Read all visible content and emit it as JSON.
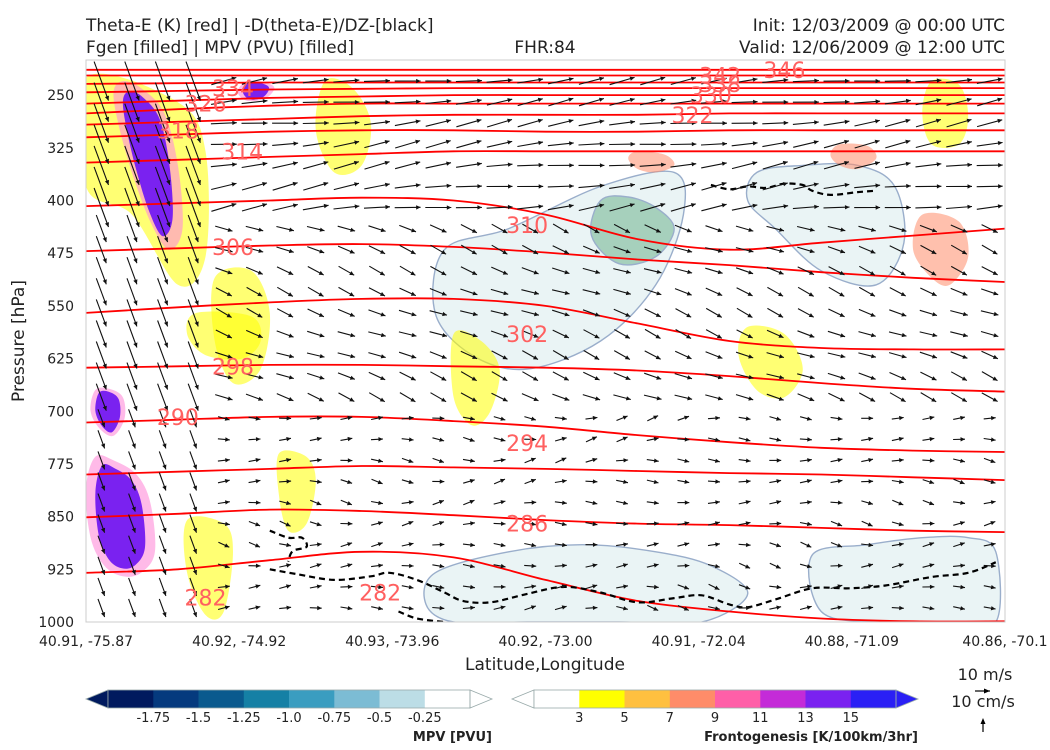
{
  "header": {
    "line1_left": "Theta-E (K) [red] | -D(theta-E)/DZ-[black]",
    "line2_left": "Fgen [filled] | MPV (PVU) [filled]",
    "line2_center": "FHR:84",
    "line1_right": "Init: 12/03/2009 @ 00:00 UTC",
    "line2_right": "Valid: 12/06/2009 @ 12:00 UTC"
  },
  "colors": {
    "theta_e": "#ff0000",
    "theta_e_label": "#ff6060",
    "stability": "#000000",
    "mpv_outline": "#9aaecb",
    "mpv_scale": [
      "#001a5e",
      "#053a7e",
      "#0a5a8e",
      "#1580a5",
      "#3a9dc0",
      "#7cbcd4",
      "#bcdde6",
      "#ffffff"
    ],
    "fgen_scale": [
      "#ffffff",
      "#ffff00",
      "#ffc040",
      "#ff8c69",
      "#ff5fa8",
      "#c42bd8",
      "#7a22f0",
      "#2a20f5"
    ]
  },
  "chart_data": {
    "type": "cross-section",
    "xlabel": "Latitude,Longitude",
    "ylabel": "Pressure [hPa]",
    "x_tick_labels": [
      "40.91, -75.87",
      "40.92, -74.92",
      "40.93, -73.96",
      "40.92, -73.00",
      "40.91, -72.04",
      "40.88, -71.09",
      "40.86, -70.1"
    ],
    "y_tick_labels": [
      "250",
      "325",
      "400",
      "475",
      "550",
      "625",
      "700",
      "775",
      "850",
      "925",
      "1000"
    ],
    "ylim": [
      1000,
      200
    ],
    "theta_e": [
      {
        "label": "346",
        "y": [
          214,
          214,
          214,
          214,
          214,
          214,
          214,
          214,
          214,
          214,
          214
        ]
      },
      {
        "label": "342",
        "y": [
          222,
          222,
          222,
          222,
          222,
          222,
          222,
          222,
          222,
          222,
          222
        ]
      },
      {
        "label": "338",
        "y": [
          234,
          233,
          232,
          232,
          232,
          232,
          232,
          232,
          232,
          232,
          232
        ]
      },
      {
        "label": "334",
        "y": [
          246,
          244,
          242,
          241,
          240,
          240,
          240,
          240,
          240,
          240,
          240
        ]
      },
      {
        "label": "330",
        "y": [
          262,
          258,
          254,
          252,
          250,
          250,
          250,
          250,
          250,
          250,
          250
        ]
      },
      {
        "label": "326",
        "y": [
          276,
          270,
          265,
          262,
          262,
          262,
          262,
          262,
          262,
          262,
          262
        ]
      },
      {
        "label": "322",
        "y": [
          292,
          288,
          284,
          280,
          278,
          278,
          278,
          276,
          276,
          276,
          276
        ]
      },
      {
        "label": "318",
        "y": [
          310,
          306,
          302,
          300,
          300,
          302,
          302,
          300,
          300,
          300,
          300
        ]
      },
      {
        "label": "314",
        "y": [
          346,
          342,
          338,
          334,
          330,
          330,
          330,
          330,
          330,
          330,
          330
        ]
      },
      {
        "label": "310",
        "y": [
          408,
          404,
          400,
          396,
          400,
          420,
          455,
          470,
          460,
          450,
          440
        ]
      },
      {
        "label": "306",
        "y": [
          472,
          468,
          464,
          462,
          466,
          474,
          484,
          492,
          502,
          510,
          516
        ]
      },
      {
        "label": "302",
        "y": [
          560,
          552,
          545,
          540,
          540,
          550,
          575,
          600,
          610,
          612,
          612
        ]
      },
      {
        "label": "298",
        "y": [
          638,
          636,
          634,
          634,
          636,
          638,
          642,
          650,
          660,
          668,
          672
        ]
      },
      {
        "label": "294",
        "y": [
          716,
          712,
          708,
          708,
          714,
          722,
          734,
          744,
          752,
          756,
          758
        ]
      },
      {
        "label": "290",
        "y": [
          790,
          786,
          782,
          778,
          780,
          782,
          785,
          788,
          790,
          794,
          798
        ]
      },
      {
        "label": "286",
        "y": [
          851,
          846,
          840,
          842,
          848,
          855,
          860,
          862,
          866,
          870,
          872
        ]
      },
      {
        "label": "282",
        "y": [
          930,
          925,
          912,
          900,
          908,
          940,
          970,
          985,
          995,
          999,
          999
        ]
      }
    ],
    "theta_e_label_positions": [
      {
        "label": "346",
        "x": 7.6,
        "p": 214
      },
      {
        "label": "342",
        "x": 6.9,
        "p": 222
      },
      {
        "label": "338",
        "x": 6.9,
        "p": 234
      },
      {
        "label": "334",
        "x": 1.6,
        "p": 240
      },
      {
        "label": "330",
        "x": 6.8,
        "p": 250
      },
      {
        "label": "326",
        "x": 1.3,
        "p": 262
      },
      {
        "label": "322",
        "x": 6.6,
        "p": 278
      },
      {
        "label": "318",
        "x": 1.0,
        "p": 300
      },
      {
        "label": "314",
        "x": 1.7,
        "p": 330
      },
      {
        "label": "310",
        "x": 4.8,
        "p": 435
      },
      {
        "label": "306",
        "x": 1.6,
        "p": 466
      },
      {
        "label": "302",
        "x": 4.8,
        "p": 590
      },
      {
        "label": "298",
        "x": 1.6,
        "p": 636
      },
      {
        "label": "294",
        "x": 4.8,
        "p": 745
      },
      {
        "label": "290",
        "x": 1.0,
        "p": 708
      },
      {
        "label": "286",
        "x": 4.8,
        "p": 860
      },
      {
        "label": "282",
        "x": 1.3,
        "p": 965
      },
      {
        "label": "282",
        "x": 3.2,
        "p": 958
      }
    ],
    "stability_contour": {
      "label": "-D(theta-E)/DZ",
      "segments": [
        [
          [
            2.0,
            925
          ],
          [
            2.3,
            932
          ],
          [
            2.7,
            940
          ],
          [
            3.1,
            935
          ],
          [
            3.3,
            930
          ],
          [
            3.6,
            940
          ],
          [
            3.9,
            958
          ],
          [
            4.1,
            970
          ],
          [
            4.4,
            972
          ],
          [
            4.8,
            960
          ],
          [
            5.2,
            950
          ],
          [
            5.6,
            958
          ],
          [
            6.0,
            972
          ],
          [
            6.4,
            966
          ],
          [
            6.7,
            962
          ],
          [
            7.0,
            975
          ],
          [
            7.2,
            979
          ],
          [
            7.5,
            968
          ],
          [
            7.9,
            952
          ],
          [
            8.3,
            952
          ],
          [
            8.7,
            948
          ],
          [
            9.2,
            936
          ],
          [
            9.6,
            930
          ],
          [
            9.9,
            915
          ]
        ],
        [
          [
            2.0,
            870
          ],
          [
            2.2,
            880
          ],
          [
            2.35,
            880
          ],
          [
            2.4,
            893
          ],
          [
            2.25,
            899
          ],
          [
            2.2,
            914
          ]
        ],
        [
          [
            6.8,
            378
          ],
          [
            7.0,
            384
          ],
          [
            7.2,
            380
          ],
          [
            7.4,
            382
          ],
          [
            7.6,
            376
          ],
          [
            7.8,
            378
          ],
          [
            7.9,
            386
          ],
          [
            8.1,
            392
          ],
          [
            8.4,
            388
          ],
          [
            8.6,
            386
          ]
        ],
        [
          [
            3.4,
            985
          ],
          [
            3.6,
            995
          ],
          [
            3.9,
            1000
          ]
        ]
      ]
    },
    "mpv_positive_regions": [
      {
        "x": [
          0.4,
          0.6,
          0.85,
          1.0,
          1.05,
          0.9,
          0.7,
          0.5,
          0.35,
          0.3
        ],
        "p": [
          230,
          240,
          275,
          350,
          440,
          470,
          430,
          360,
          290,
          245
        ],
        "level": 13
      },
      {
        "x": [
          0.1,
          0.3,
          0.55,
          0.7,
          0.75,
          0.6,
          0.4,
          0.2,
          0.05,
          0.0
        ],
        "p": [
          765,
          770,
          790,
          830,
          900,
          930,
          935,
          920,
          880,
          810
        ],
        "level": 13
      },
      {
        "x": [
          0.1,
          0.25,
          0.4,
          0.42,
          0.3,
          0.15,
          0.05
        ],
        "p": [
          670,
          668,
          680,
          710,
          735,
          725,
          700
        ],
        "level": 13
      },
      {
        "x": [
          1.75,
          1.95,
          2.05,
          1.95,
          1.75,
          1.65
        ],
        "p": [
          230,
          232,
          240,
          255,
          258,
          245
        ],
        "level": 13
      }
    ],
    "fgen_regions": [
      {
        "x": [
          0.0,
          1.0,
          1.3,
          1.3,
          1.0,
          0.5,
          0.0
        ],
        "p": [
          225,
          260,
          330,
          480,
          520,
          420,
          380
        ],
        "level": 3
      },
      {
        "x": [
          1.4,
          1.8,
          2.0,
          1.9,
          1.6,
          1.4
        ],
        "p": [
          510,
          500,
          560,
          640,
          660,
          600
        ],
        "level": 3
      },
      {
        "x": [
          2.6,
          2.9,
          3.1,
          3.0,
          2.7,
          2.5
        ],
        "p": [
          230,
          240,
          290,
          350,
          360,
          300
        ],
        "level": 3
      },
      {
        "x": [
          4.0,
          4.3,
          4.5,
          4.4,
          4.2,
          4.0
        ],
        "p": [
          590,
          600,
          640,
          700,
          720,
          680
        ],
        "level": 3
      },
      {
        "x": [
          1.1,
          1.5,
          1.6,
          1.5,
          1.3,
          1.1
        ],
        "p": [
          855,
          860,
          900,
          985,
          990,
          930
        ],
        "level": 3
      },
      {
        "x": [
          2.1,
          2.4,
          2.5,
          2.4,
          2.2,
          2.1
        ],
        "p": [
          760,
          765,
          800,
          860,
          870,
          820
        ],
        "level": 3
      },
      {
        "x": [
          9.1,
          9.5,
          9.6,
          9.4,
          9.2,
          9.0
        ],
        "p": [
          420,
          430,
          480,
          520,
          510,
          470
        ],
        "level": 7
      },
      {
        "x": [
          9.2,
          9.5,
          9.6,
          9.5,
          9.2,
          9.1
        ],
        "p": [
          230,
          235,
          280,
          320,
          320,
          275
        ],
        "level": 3
      },
      {
        "x": [
          6.0,
          6.3,
          6.4,
          6.2,
          6.0,
          5.9
        ],
        "p": [
          330,
          335,
          350,
          360,
          355,
          340
        ],
        "level": 7
      },
      {
        "x": [
          8.2,
          8.5,
          8.6,
          8.4,
          8.2,
          8.1
        ],
        "p": [
          320,
          322,
          340,
          355,
          350,
          335
        ],
        "level": 7
      },
      {
        "x": [
          7.2,
          7.6,
          7.8,
          7.6,
          7.3,
          7.1
        ],
        "p": [
          580,
          590,
          640,
          680,
          670,
          620
        ],
        "level": 3
      },
      {
        "x": [
          1.2,
          1.8,
          1.9,
          1.7,
          1.3,
          1.1
        ],
        "p": [
          560,
          565,
          600,
          625,
          620,
          590
        ],
        "level": 3
      }
    ],
    "mpv_negative_regions": [
      {
        "x": [
          3.9,
          4.6,
          5.6,
          6.4,
          6.5,
          6.2,
          5.6,
          4.8,
          4.2,
          3.8
        ],
        "p": [
          470,
          440,
          380,
          360,
          420,
          520,
          600,
          640,
          620,
          560
        ],
        "level": -0.25
      },
      {
        "x": [
          5.6,
          5.9,
          6.2,
          6.4,
          6.2,
          5.8,
          5.5
        ],
        "p": [
          400,
          395,
          410,
          440,
          480,
          490,
          450
        ],
        "level": -0.75
      },
      {
        "x": [
          7.3,
          7.8,
          8.4,
          8.8,
          8.9,
          8.6,
          8.0,
          7.5,
          7.2
        ],
        "p": [
          360,
          350,
          350,
          380,
          460,
          520,
          500,
          440,
          400
        ],
        "level": -0.25
      },
      {
        "x": [
          3.8,
          4.6,
          5.4,
          6.2,
          6.8,
          7.2,
          6.7,
          5.8,
          4.8,
          4.0,
          3.7
        ],
        "p": [
          930,
          900,
          890,
          900,
          920,
          960,
          1000,
          1000,
          1000,
          1000,
          975
        ],
        "level": -0.25
      },
      {
        "x": [
          7.9,
          8.5,
          9.1,
          9.6,
          9.9,
          9.9,
          9.4,
          8.6,
          8.0
        ],
        "p": [
          905,
          890,
          880,
          880,
          900,
          1000,
          1000,
          1000,
          985
        ],
        "level": -0.25
      }
    ],
    "wind_grid": {
      "x_count": 30,
      "p_levels": [
        230,
        260,
        290,
        320,
        350,
        380,
        410,
        440,
        470,
        500,
        530,
        560,
        590,
        620,
        650,
        680,
        710,
        740,
        770,
        800,
        830,
        860,
        890,
        920,
        950,
        980
      ]
    },
    "reference_vector": {
      "label_1": "10 m/s",
      "label_2": "10 cm/s"
    },
    "colorbars": [
      {
        "title": "MPV [PVU]",
        "tick_labels": [
          "-1.75",
          "-1.5",
          "-1.25",
          "-1.0",
          "-0.75",
          "-0.5",
          "-0.25"
        ]
      },
      {
        "title": "Frontogenesis [K/100km/3hr]",
        "tick_labels": [
          "3",
          "5",
          "7",
          "9",
          "11",
          "13",
          "15"
        ]
      }
    ]
  }
}
